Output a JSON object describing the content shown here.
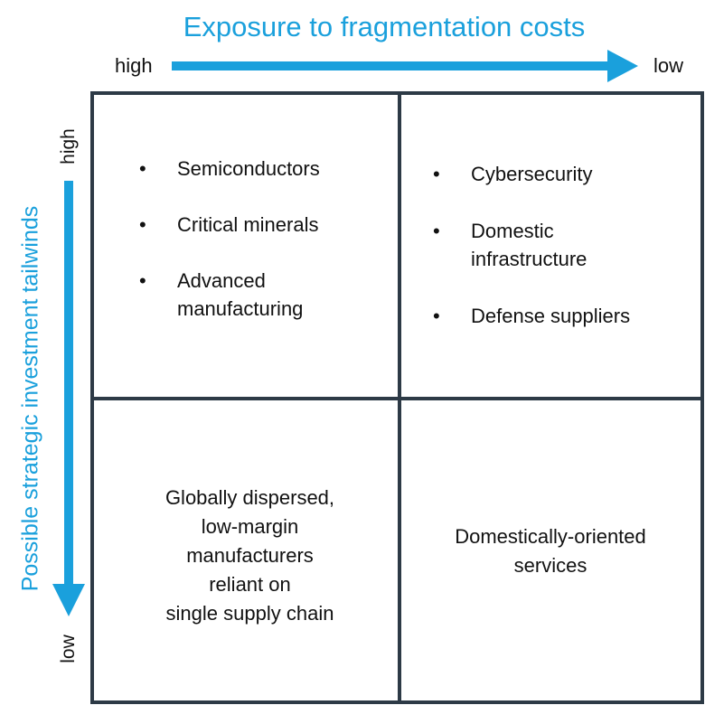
{
  "x_axis": {
    "title": "Exposure to fragmentation costs",
    "start_label": "high",
    "end_label": "low"
  },
  "y_axis": {
    "title": "Possible strategic investment tailwinds",
    "start_label": "high",
    "end_label": "low"
  },
  "colors": {
    "accent": "#1aa0dc",
    "grid_line": "#2d3a46",
    "text": "#111111"
  },
  "quadrants": {
    "top_left": {
      "items": [
        "Semiconductors",
        "Critical minerals",
        "Advanced manufacturing"
      ]
    },
    "top_right": {
      "items": [
        "Cybersecurity",
        "Domestic infrastructure",
        "Defense suppliers"
      ]
    },
    "bottom_left": {
      "lines": [
        "Globally dispersed,",
        "low-margin",
        "manufacturers",
        "reliant on",
        "single supply chain"
      ]
    },
    "bottom_right": {
      "lines": [
        "Domestically-oriented",
        "services"
      ]
    }
  }
}
